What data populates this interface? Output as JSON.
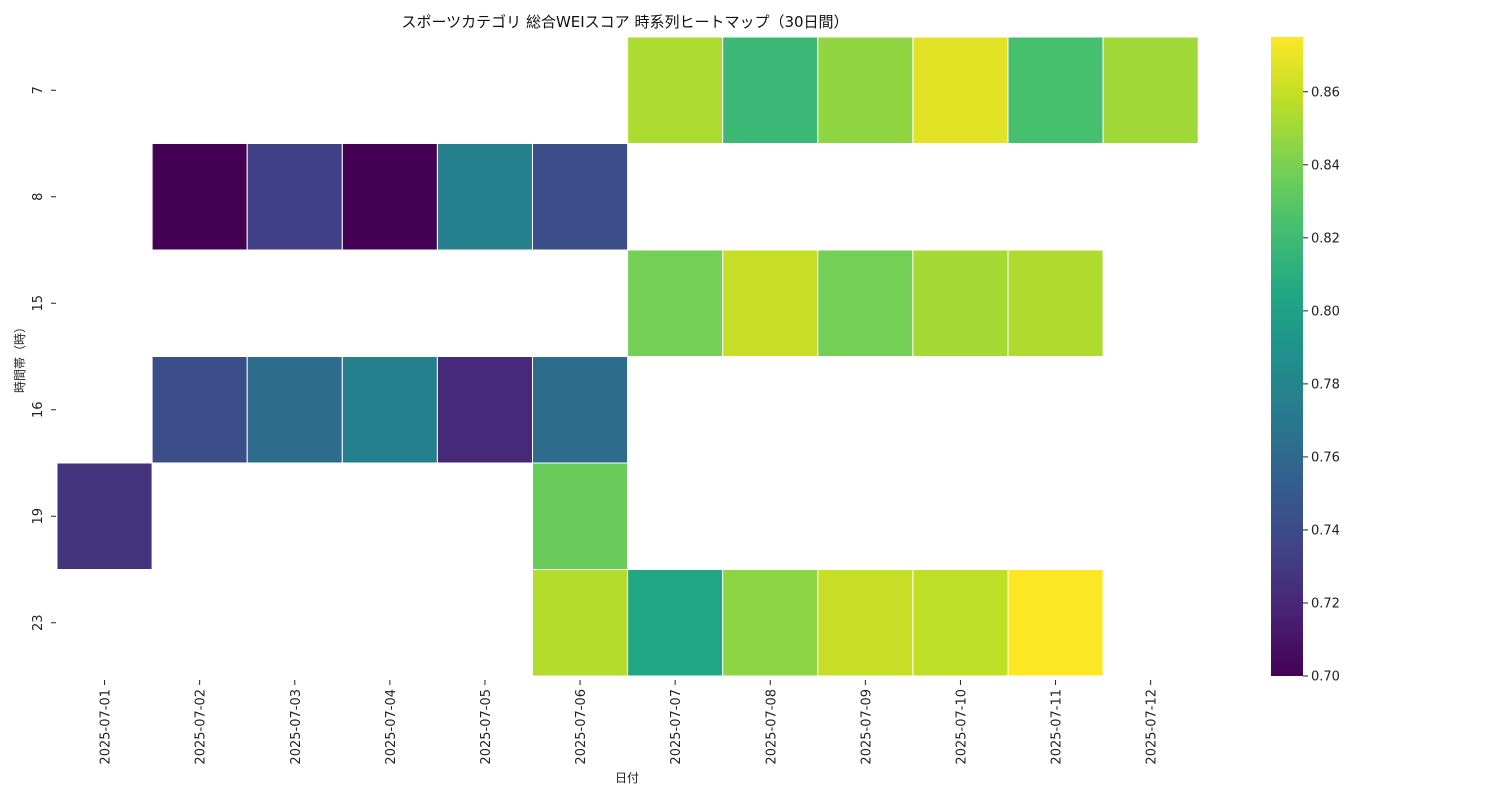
{
  "chart_data": {
    "type": "heatmap",
    "title": "スポーツカテゴリ 総合WEIスコア 時系列ヒートマップ（30日間）",
    "xlabel": "日付",
    "ylabel": "時間帯（時）",
    "x_categories": [
      "2025-07-01",
      "2025-07-02",
      "2025-07-03",
      "2025-07-04",
      "2025-07-05",
      "2025-07-06",
      "2025-07-07",
      "2025-07-08",
      "2025-07-09",
      "2025-07-10",
      "2025-07-11",
      "2025-07-12"
    ],
    "y_categories": [
      "7",
      "8",
      "15",
      "16",
      "19",
      "23"
    ],
    "values": [
      [
        null,
        null,
        null,
        null,
        null,
        null,
        0.853,
        0.818,
        0.846,
        0.868,
        0.823,
        0.85
      ],
      [
        null,
        0.7,
        0.733,
        0.7,
        0.775,
        0.742,
        null,
        null,
        null,
        null,
        null,
        null
      ],
      [
        null,
        null,
        null,
        null,
        null,
        null,
        0.838,
        0.86,
        0.838,
        0.851,
        0.854,
        null
      ],
      [
        null,
        0.742,
        0.762,
        0.775,
        0.721,
        0.762,
        null,
        null,
        null,
        null,
        null,
        null
      ],
      [
        0.726,
        null,
        null,
        null,
        null,
        0.835,
        null,
        null,
        null,
        null,
        null,
        null
      ],
      [
        null,
        null,
        null,
        null,
        null,
        0.855,
        0.805,
        0.845,
        0.86,
        0.858,
        0.875,
        null
      ]
    ],
    "colorbar": {
      "colormap": "viridis",
      "min": 0.7,
      "max": 0.875,
      "ticks": [
        "0.70",
        "0.72",
        "0.74",
        "0.76",
        "0.78",
        "0.80",
        "0.82",
        "0.84",
        "0.86"
      ]
    },
    "grid": false,
    "cell_border_color": "#ffffff"
  }
}
